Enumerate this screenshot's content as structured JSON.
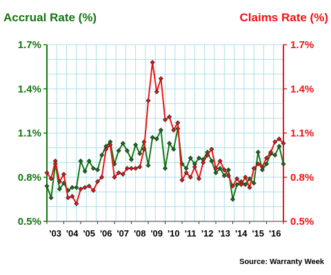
{
  "chart_data": {
    "type": "line",
    "title_left": "Accrual Rate (%)",
    "title_right": "Claims Rate (%)",
    "source": "Source: Warranty Week",
    "colors": {
      "accrual": "#127512",
      "claims": "#ee1111",
      "grid": "#a9dfe6",
      "left_axis": "#127512",
      "right_axis": "#ee1111"
    },
    "grid": true,
    "y_range": [
      0.5,
      1.7
    ],
    "y_ticks": [
      {
        "value": 0.5,
        "label": "0.5%"
      },
      {
        "value": 0.8,
        "label": "0.8%"
      },
      {
        "value": 1.1,
        "label": "1.1%"
      },
      {
        "value": 1.4,
        "label": "1.4%"
      },
      {
        "value": 1.7,
        "label": "1.7%"
      }
    ],
    "x_range": [
      0,
      56
    ],
    "x_tick_labels": [
      "'03",
      "'04",
      "'05",
      "'06",
      "'07",
      "'08",
      "'09",
      "'10",
      "'11",
      "'12",
      "'13",
      "'14",
      "'15",
      "'16"
    ],
    "series": [
      {
        "key": "accrual",
        "values": [
          0.74,
          0.66,
          0.89,
          0.72,
          0.76,
          0.71,
          0.73,
          0.73,
          0.91,
          0.84,
          0.91,
          0.86,
          0.85,
          0.95,
          1.01,
          1.04,
          0.89,
          0.98,
          1.03,
          0.98,
          0.92,
          1.02,
          0.96,
          1.04,
          0.88,
          1.07,
          1.06,
          1.12,
          0.86,
          1.03,
          0.99,
          1.13,
          0.89,
          0.86,
          0.93,
          0.89,
          0.93,
          0.92,
          0.97,
          0.91,
          0.83,
          0.86,
          0.81,
          0.85,
          0.65,
          0.75,
          0.77,
          0.75,
          0.79,
          0.76,
          0.97,
          0.85,
          0.89,
          0.96,
          0.95,
          1.01,
          0.89
        ]
      },
      {
        "key": "claims",
        "values": [
          0.83,
          0.79,
          0.91,
          0.77,
          0.82,
          0.66,
          0.67,
          0.62,
          0.72,
          0.73,
          0.74,
          0.71,
          0.77,
          0.8,
          0.99,
          1.02,
          0.8,
          0.83,
          0.82,
          0.86,
          0.86,
          0.86,
          0.87,
          0.99,
          1.32,
          1.58,
          1.38,
          1.47,
          1.19,
          1.21,
          1.12,
          1.17,
          0.78,
          0.83,
          0.8,
          0.87,
          0.79,
          0.9,
          0.95,
          0.99,
          0.86,
          0.91,
          0.85,
          0.81,
          0.74,
          0.79,
          0.75,
          0.8,
          0.73,
          0.86,
          0.89,
          0.87,
          0.93,
          0.97,
          1.04,
          1.06,
          1.03
        ]
      }
    ]
  }
}
